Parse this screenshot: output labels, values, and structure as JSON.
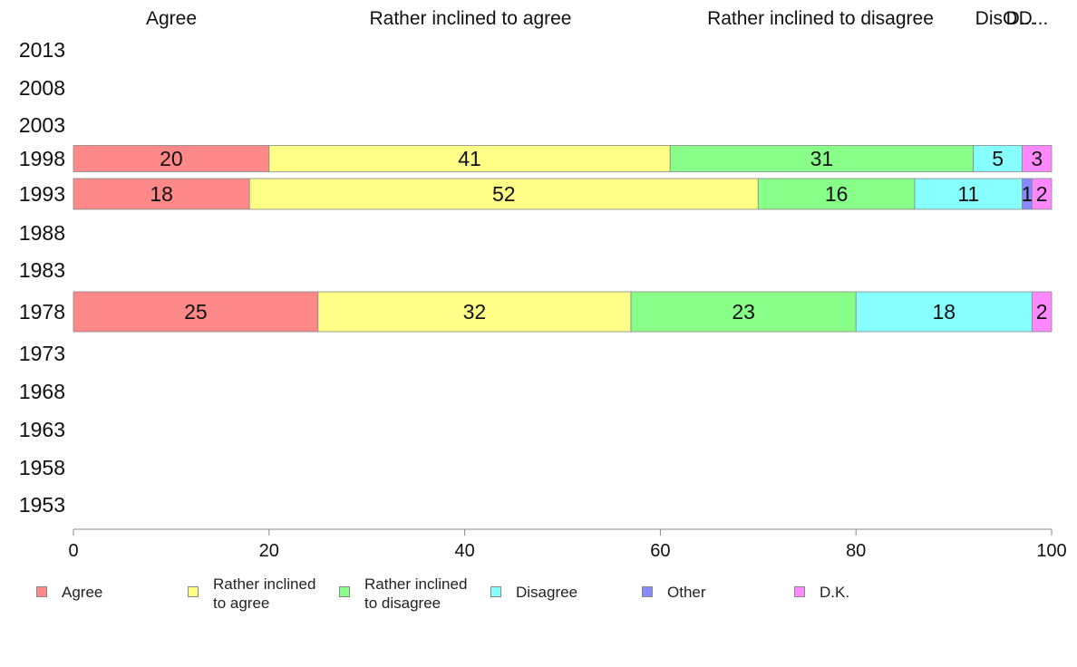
{
  "chart_data": {
    "type": "bar",
    "orientation": "horizontal",
    "stacked": true,
    "categories": [
      "2013",
      "2008",
      "2003",
      "1998",
      "1993",
      "1988",
      "1983",
      "1978",
      "1973",
      "1968",
      "1963",
      "1958",
      "1953"
    ],
    "series": [
      {
        "name": "Agree",
        "color": "#ff8888",
        "values": [
          null,
          null,
          null,
          20,
          18,
          null,
          null,
          25,
          null,
          null,
          null,
          null,
          null
        ]
      },
      {
        "name": "Rather inclined to agree",
        "color": "#ffff88",
        "values": [
          null,
          null,
          null,
          41,
          52,
          null,
          null,
          32,
          null,
          null,
          null,
          null,
          null
        ]
      },
      {
        "name": "Rather inclined to disagree",
        "color": "#88ff88",
        "values": [
          null,
          null,
          null,
          31,
          16,
          null,
          null,
          23,
          null,
          null,
          null,
          null,
          null
        ]
      },
      {
        "name": "Disagree",
        "color": "#88ffff",
        "values": [
          null,
          null,
          null,
          5,
          11,
          null,
          null,
          18,
          null,
          null,
          null,
          null,
          null
        ]
      },
      {
        "name": "Other",
        "color": "#8888ff",
        "values": [
          null,
          null,
          null,
          0,
          1,
          null,
          null,
          0,
          null,
          null,
          null,
          null,
          null
        ]
      },
      {
        "name": "D.K.",
        "color": "#ff88ff",
        "values": [
          null,
          null,
          null,
          3,
          2,
          null,
          null,
          2,
          null,
          null,
          null,
          null,
          null
        ]
      }
    ],
    "top_labels": [
      "Agree",
      "Rather inclined to agree",
      "Rather inclined to disagree",
      "DisO",
      "D...",
      "D..."
    ],
    "xlim": [
      0,
      100
    ],
    "xticks": [
      "0",
      "20",
      "40",
      "60",
      "80",
      "100"
    ],
    "grid": false,
    "legend_position": "bottom",
    "legend_labels": [
      "Agree",
      "Rather inclined\nto agree",
      "Rather inclined\nto disagree",
      "Disagree",
      "Other",
      "D.K."
    ]
  }
}
